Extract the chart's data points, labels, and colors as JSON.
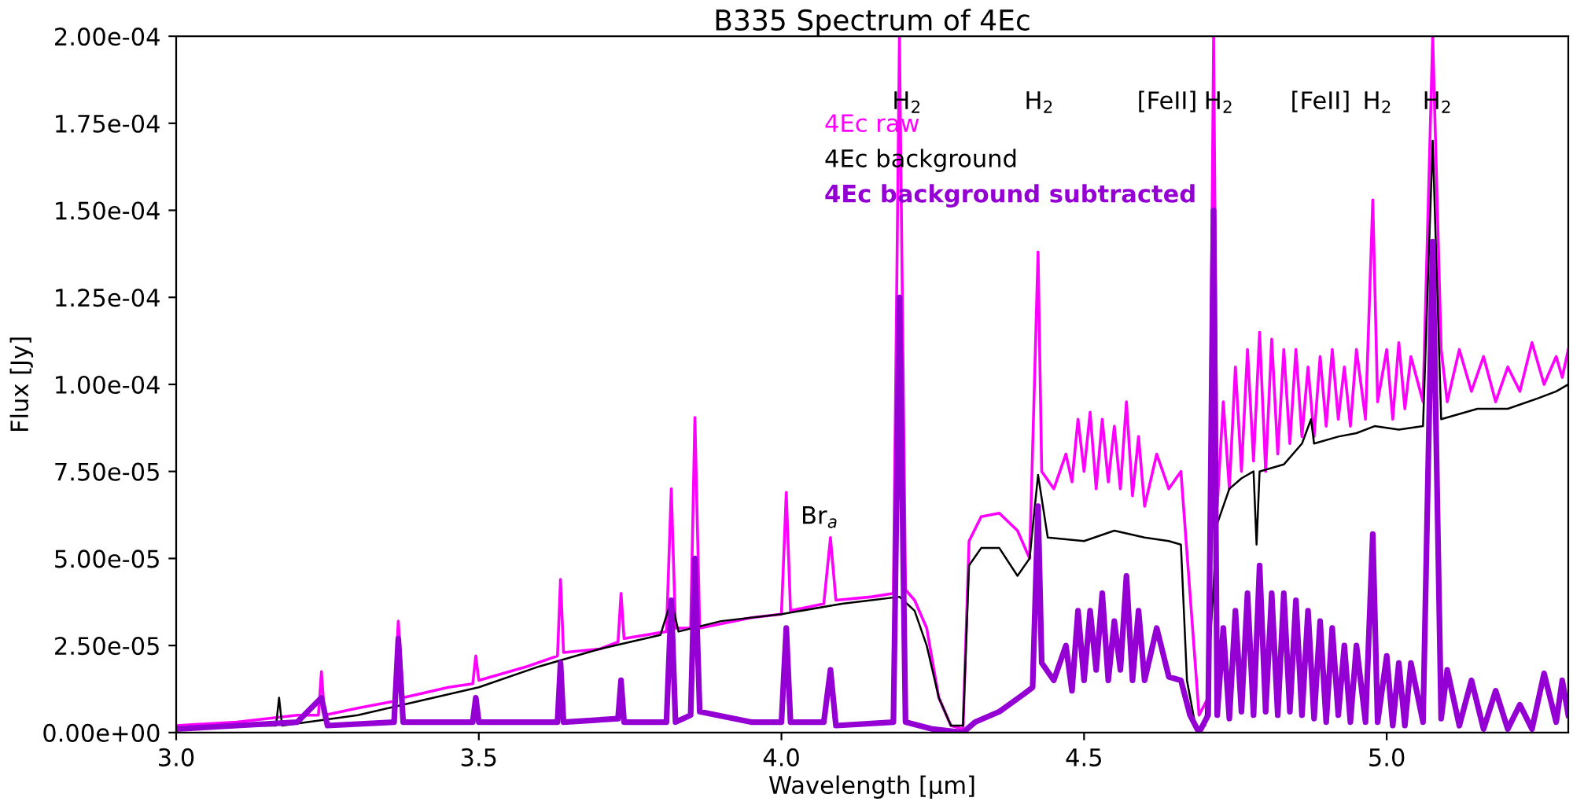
{
  "chart_data": {
    "type": "line",
    "title": "B335 Spectrum of 4Ec",
    "xlabel": "Wavelength [μm]",
    "ylabel": "Flux [Jy]",
    "xlim": [
      3.0,
      5.3
    ],
    "xticks": [
      {
        "value": 3.0,
        "label": "3.0"
      },
      {
        "value": 3.5,
        "label": "3.5"
      },
      {
        "value": 4.0,
        "label": "4.0"
      },
      {
        "value": 4.5,
        "label": "4.5"
      },
      {
        "value": 5.0,
        "label": "5.0"
      }
    ],
    "ylim": [
      0,
      0.0002
    ],
    "yticks": [
      {
        "value": 0,
        "label": "0.00e+00"
      },
      {
        "value": 2.5e-05,
        "label": "2.50e-05"
      },
      {
        "value": 5e-05,
        "label": "5.00e-05"
      },
      {
        "value": 7.5e-05,
        "label": "7.50e-05"
      },
      {
        "value": 0.0001,
        "label": "1.00e-04"
      },
      {
        "value": 0.000125,
        "label": "1.25e-04"
      },
      {
        "value": 0.00015,
        "label": "1.50e-04"
      },
      {
        "value": 0.000175,
        "label": "1.75e-04"
      },
      {
        "value": 0.0002,
        "label": "2.00e-04"
      }
    ],
    "grid": false,
    "legend": "top",
    "marker": "none",
    "line_style": "solid",
    "annotations": [
      "H$_{2}$",
      "H$_{2}$",
      "[FeII]",
      "H$_{2}$",
      "[FeII]",
      "H$_{2}$",
      "H$_{2}$",
      {
        "text": "Br$_{a}$",
        "x": 4.081,
        "y": 5.6e-05
      }
    ],
    "series": [
      {
        "name": "4Ec raw",
        "color": "#ff00ff",
        "x": [
          3.0,
          3.1,
          3.2,
          3.235,
          3.24,
          3.245,
          3.3,
          3.36,
          3.367,
          3.375,
          3.45,
          3.49,
          3.495,
          3.5,
          3.58,
          3.63,
          3.635,
          3.64,
          3.7,
          3.73,
          3.735,
          3.74,
          3.81,
          3.818,
          3.825,
          3.85,
          3.857,
          3.865,
          3.95,
          4.0,
          4.008,
          4.015,
          4.07,
          4.081,
          4.09,
          4.15,
          4.185,
          4.195,
          4.205,
          4.22,
          4.24,
          4.26,
          4.28,
          4.3,
          4.31,
          4.33,
          4.36,
          4.39,
          4.41,
          4.424,
          4.43,
          4.45,
          4.47,
          4.48,
          4.49,
          4.5,
          4.51,
          4.52,
          4.53,
          4.54,
          4.55,
          4.56,
          4.57,
          4.58,
          4.59,
          4.6,
          4.62,
          4.64,
          4.66,
          4.675,
          4.69,
          4.705,
          4.714,
          4.72,
          4.73,
          4.74,
          4.75,
          4.76,
          4.77,
          4.78,
          4.79,
          4.8,
          4.81,
          4.82,
          4.83,
          4.84,
          4.85,
          4.86,
          4.87,
          4.88,
          4.89,
          4.9,
          4.91,
          4.92,
          4.93,
          4.94,
          4.95,
          4.965,
          4.977,
          4.985,
          5.0,
          5.01,
          5.02,
          5.03,
          5.04,
          5.06,
          5.076,
          5.09,
          5.1,
          5.12,
          5.14,
          5.16,
          5.18,
          5.2,
          5.22,
          5.24,
          5.26,
          5.28,
          5.29,
          5.3
        ],
        "values": [
          2e-06,
          3e-06,
          5e-06,
          5e-06,
          1.75e-05,
          5e-06,
          7e-06,
          9e-06,
          3.2e-05,
          1e-05,
          1.3e-05,
          1.4e-05,
          2.2e-05,
          1.5e-05,
          1.9e-05,
          2.2e-05,
          4.4e-05,
          2.3e-05,
          2.4e-05,
          2.6e-05,
          4e-05,
          2.7e-05,
          2.9e-05,
          7e-05,
          3e-05,
          3e-05,
          9.05e-05,
          3e-05,
          3.3e-05,
          3.4e-05,
          6.9e-05,
          3.5e-05,
          3.7e-05,
          5.6e-05,
          3.8e-05,
          3.9e-05,
          4e-05,
          0.0002,
          4.1e-05,
          3.8e-05,
          3e-05,
          1e-05,
          2e-06,
          1e-06,
          5.5e-05,
          6.2e-05,
          6.3e-05,
          5.8e-05,
          5e-05,
          0.000138,
          7.5e-05,
          7e-05,
          8e-05,
          7.2e-05,
          9e-05,
          7.5e-05,
          9.2e-05,
          7e-05,
          9e-05,
          7.2e-05,
          8.8e-05,
          7e-05,
          9.5e-05,
          6.8e-05,
          8.5e-05,
          6.5e-05,
          8e-05,
          7e-05,
          7.5e-05,
          4e-05,
          5e-06,
          1e-05,
          0.0002,
          6.5e-05,
          9.5e-05,
          7e-05,
          0.000105,
          7.5e-05,
          0.00011,
          7.8e-05,
          0.000115,
          7.5e-05,
          0.000113,
          8e-05,
          0.00011,
          8.3e-05,
          0.00011,
          8.5e-05,
          0.000105,
          8.5e-05,
          0.000108,
          8.8e-05,
          0.00011,
          9e-05,
          0.000105,
          8.8e-05,
          0.00011,
          9e-05,
          0.000153,
          9.5e-05,
          0.00011,
          9e-05,
          0.000112,
          9.3e-05,
          0.000108,
          9.5e-05,
          0.0002,
          0.00011,
          9.5e-05,
          0.00011,
          9.8e-05,
          0.000108,
          9.5e-05,
          0.000105,
          9.8e-05,
          0.000112,
          0.0001,
          0.000108,
          0.000102,
          0.00011
        ]
      },
      {
        "name": "4Ec background",
        "color": "#000000",
        "x": [
          3.0,
          3.1,
          3.165,
          3.17,
          3.175,
          3.3,
          3.4,
          3.5,
          3.6,
          3.7,
          3.8,
          3.818,
          3.83,
          3.9,
          4.0,
          4.1,
          4.195,
          4.22,
          4.24,
          4.26,
          4.28,
          4.3,
          4.31,
          4.33,
          4.36,
          4.39,
          4.41,
          4.424,
          4.44,
          4.5,
          4.55,
          4.6,
          4.64,
          4.66,
          4.67,
          4.685,
          4.7,
          4.72,
          4.74,
          4.76,
          4.78,
          4.785,
          4.79,
          4.83,
          4.86,
          4.875,
          4.88,
          4.92,
          4.95,
          4.98,
          5.02,
          5.06,
          5.076,
          5.09,
          5.15,
          5.2,
          5.25,
          5.28,
          5.3
        ],
        "values": [
          1e-06,
          2e-06,
          2e-06,
          1e-05,
          2e-06,
          5e-06,
          9e-06,
          1.3e-05,
          1.9e-05,
          2.4e-05,
          2.8e-05,
          3.8e-05,
          2.9e-05,
          3.2e-05,
          3.4e-05,
          3.7e-05,
          3.9e-05,
          3.5e-05,
          2.5e-05,
          1e-05,
          2e-06,
          2e-06,
          4.8e-05,
          5.3e-05,
          5.3e-05,
          4.5e-05,
          5e-05,
          7.4e-05,
          5.6e-05,
          5.5e-05,
          5.8e-05,
          5.6e-05,
          5.5e-05,
          5.4e-05,
          1.5e-05,
          1e-06,
          2e-06,
          6e-05,
          7e-05,
          7.3e-05,
          7.5e-05,
          5.4e-05,
          7.5e-05,
          7.7e-05,
          8.3e-05,
          9e-05,
          8.3e-05,
          8.5e-05,
          8.6e-05,
          8.8e-05,
          8.7e-05,
          8.8e-05,
          0.00017,
          9e-05,
          9.3e-05,
          9.3e-05,
          9.6e-05,
          9.8e-05,
          0.0001
        ]
      },
      {
        "name": "4Ec background subtracted",
        "color": "#9400d3",
        "x": [
          3.0,
          3.1,
          3.2,
          3.24,
          3.25,
          3.36,
          3.367,
          3.375,
          3.49,
          3.495,
          3.5,
          3.63,
          3.635,
          3.64,
          3.73,
          3.735,
          3.74,
          3.81,
          3.818,
          3.825,
          3.85,
          3.857,
          3.865,
          3.95,
          4.0,
          4.008,
          4.015,
          4.07,
          4.081,
          4.09,
          4.185,
          4.195,
          4.205,
          4.25,
          4.3,
          4.32,
          4.36,
          4.4,
          4.415,
          4.424,
          4.43,
          4.45,
          4.47,
          4.48,
          4.49,
          4.5,
          4.51,
          4.52,
          4.53,
          4.54,
          4.55,
          4.56,
          4.57,
          4.58,
          4.59,
          4.6,
          4.62,
          4.64,
          4.66,
          4.675,
          4.69,
          4.705,
          4.714,
          4.72,
          4.73,
          4.74,
          4.75,
          4.76,
          4.77,
          4.78,
          4.79,
          4.8,
          4.81,
          4.82,
          4.83,
          4.84,
          4.85,
          4.86,
          4.87,
          4.88,
          4.89,
          4.9,
          4.91,
          4.92,
          4.93,
          4.94,
          4.95,
          4.965,
          4.977,
          4.985,
          5.0,
          5.01,
          5.02,
          5.03,
          5.04,
          5.06,
          5.076,
          5.09,
          5.1,
          5.12,
          5.14,
          5.16,
          5.18,
          5.2,
          5.22,
          5.24,
          5.26,
          5.28,
          5.29,
          5.3
        ],
        "values": [
          1e-06,
          2e-06,
          3e-06,
          1e-05,
          2e-06,
          3e-06,
          2.7e-05,
          3e-06,
          3e-06,
          1e-05,
          3e-06,
          3e-06,
          2e-05,
          3e-06,
          4e-06,
          1.5e-05,
          3e-06,
          3e-06,
          3.8e-05,
          3e-06,
          5e-06,
          5e-05,
          6e-06,
          3e-06,
          3e-06,
          3e-05,
          3e-06,
          3e-06,
          1.8e-05,
          2e-06,
          3e-06,
          0.000125,
          3e-06,
          1e-06,
          0.0,
          3e-06,
          6e-06,
          1.1e-05,
          1.3e-05,
          6.5e-05,
          2e-05,
          1.5e-05,
          2.5e-05,
          1.2e-05,
          3.5e-05,
          1.5e-05,
          3.5e-05,
          1.8e-05,
          4e-05,
          1.5e-05,
          3.2e-05,
          1.8e-05,
          4.5e-05,
          1.5e-05,
          3.5e-05,
          1.5e-05,
          3e-05,
          1.6e-05,
          1.5e-05,
          5e-06,
          0.0,
          5e-06,
          0.00015,
          5e-06,
          3e-05,
          4e-06,
          3.5e-05,
          6e-06,
          4e-05,
          5e-06,
          4.8e-05,
          6e-06,
          4e-05,
          5e-06,
          4e-05,
          6e-06,
          3.8e-05,
          5e-06,
          3.5e-05,
          4e-06,
          3.2e-05,
          3e-06,
          3e-05,
          5e-06,
          2.5e-05,
          3e-06,
          2.5e-05,
          3e-06,
          5.7e-05,
          3e-06,
          2.2e-05,
          2e-06,
          2e-05,
          2e-06,
          2e-05,
          3e-06,
          0.000141,
          4e-06,
          1.8e-05,
          2e-06,
          1.5e-05,
          1e-06,
          1.2e-05,
          1e-06,
          8e-06,
          1e-06,
          1.7e-05,
          3e-06,
          1.5e-05,
          5e-06
        ]
      }
    ]
  }
}
